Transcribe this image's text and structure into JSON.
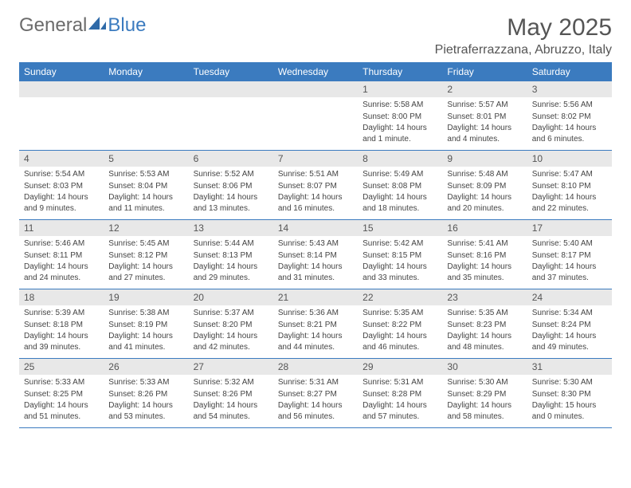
{
  "brand": {
    "part1": "General",
    "part2": "Blue"
  },
  "title": "May 2025",
  "location": "Pietraferrazzana, Abruzzo, Italy",
  "weekdays": [
    "Sunday",
    "Monday",
    "Tuesday",
    "Wednesday",
    "Thursday",
    "Friday",
    "Saturday"
  ],
  "colors": {
    "header_bar": "#3b7bbf",
    "daynum_bg": "#e8e8e8",
    "text": "#444444",
    "grid_border": "#3b7bbf"
  },
  "weeks": [
    [
      {
        "n": "",
        "sr": "",
        "ss": "",
        "dl": ""
      },
      {
        "n": "",
        "sr": "",
        "ss": "",
        "dl": ""
      },
      {
        "n": "",
        "sr": "",
        "ss": "",
        "dl": ""
      },
      {
        "n": "",
        "sr": "",
        "ss": "",
        "dl": ""
      },
      {
        "n": "1",
        "sr": "Sunrise: 5:58 AM",
        "ss": "Sunset: 8:00 PM",
        "dl": "Daylight: 14 hours and 1 minute."
      },
      {
        "n": "2",
        "sr": "Sunrise: 5:57 AM",
        "ss": "Sunset: 8:01 PM",
        "dl": "Daylight: 14 hours and 4 minutes."
      },
      {
        "n": "3",
        "sr": "Sunrise: 5:56 AM",
        "ss": "Sunset: 8:02 PM",
        "dl": "Daylight: 14 hours and 6 minutes."
      }
    ],
    [
      {
        "n": "4",
        "sr": "Sunrise: 5:54 AM",
        "ss": "Sunset: 8:03 PM",
        "dl": "Daylight: 14 hours and 9 minutes."
      },
      {
        "n": "5",
        "sr": "Sunrise: 5:53 AM",
        "ss": "Sunset: 8:04 PM",
        "dl": "Daylight: 14 hours and 11 minutes."
      },
      {
        "n": "6",
        "sr": "Sunrise: 5:52 AM",
        "ss": "Sunset: 8:06 PM",
        "dl": "Daylight: 14 hours and 13 minutes."
      },
      {
        "n": "7",
        "sr": "Sunrise: 5:51 AM",
        "ss": "Sunset: 8:07 PM",
        "dl": "Daylight: 14 hours and 16 minutes."
      },
      {
        "n": "8",
        "sr": "Sunrise: 5:49 AM",
        "ss": "Sunset: 8:08 PM",
        "dl": "Daylight: 14 hours and 18 minutes."
      },
      {
        "n": "9",
        "sr": "Sunrise: 5:48 AM",
        "ss": "Sunset: 8:09 PM",
        "dl": "Daylight: 14 hours and 20 minutes."
      },
      {
        "n": "10",
        "sr": "Sunrise: 5:47 AM",
        "ss": "Sunset: 8:10 PM",
        "dl": "Daylight: 14 hours and 22 minutes."
      }
    ],
    [
      {
        "n": "11",
        "sr": "Sunrise: 5:46 AM",
        "ss": "Sunset: 8:11 PM",
        "dl": "Daylight: 14 hours and 24 minutes."
      },
      {
        "n": "12",
        "sr": "Sunrise: 5:45 AM",
        "ss": "Sunset: 8:12 PM",
        "dl": "Daylight: 14 hours and 27 minutes."
      },
      {
        "n": "13",
        "sr": "Sunrise: 5:44 AM",
        "ss": "Sunset: 8:13 PM",
        "dl": "Daylight: 14 hours and 29 minutes."
      },
      {
        "n": "14",
        "sr": "Sunrise: 5:43 AM",
        "ss": "Sunset: 8:14 PM",
        "dl": "Daylight: 14 hours and 31 minutes."
      },
      {
        "n": "15",
        "sr": "Sunrise: 5:42 AM",
        "ss": "Sunset: 8:15 PM",
        "dl": "Daylight: 14 hours and 33 minutes."
      },
      {
        "n": "16",
        "sr": "Sunrise: 5:41 AM",
        "ss": "Sunset: 8:16 PM",
        "dl": "Daylight: 14 hours and 35 minutes."
      },
      {
        "n": "17",
        "sr": "Sunrise: 5:40 AM",
        "ss": "Sunset: 8:17 PM",
        "dl": "Daylight: 14 hours and 37 minutes."
      }
    ],
    [
      {
        "n": "18",
        "sr": "Sunrise: 5:39 AM",
        "ss": "Sunset: 8:18 PM",
        "dl": "Daylight: 14 hours and 39 minutes."
      },
      {
        "n": "19",
        "sr": "Sunrise: 5:38 AM",
        "ss": "Sunset: 8:19 PM",
        "dl": "Daylight: 14 hours and 41 minutes."
      },
      {
        "n": "20",
        "sr": "Sunrise: 5:37 AM",
        "ss": "Sunset: 8:20 PM",
        "dl": "Daylight: 14 hours and 42 minutes."
      },
      {
        "n": "21",
        "sr": "Sunrise: 5:36 AM",
        "ss": "Sunset: 8:21 PM",
        "dl": "Daylight: 14 hours and 44 minutes."
      },
      {
        "n": "22",
        "sr": "Sunrise: 5:35 AM",
        "ss": "Sunset: 8:22 PM",
        "dl": "Daylight: 14 hours and 46 minutes."
      },
      {
        "n": "23",
        "sr": "Sunrise: 5:35 AM",
        "ss": "Sunset: 8:23 PM",
        "dl": "Daylight: 14 hours and 48 minutes."
      },
      {
        "n": "24",
        "sr": "Sunrise: 5:34 AM",
        "ss": "Sunset: 8:24 PM",
        "dl": "Daylight: 14 hours and 49 minutes."
      }
    ],
    [
      {
        "n": "25",
        "sr": "Sunrise: 5:33 AM",
        "ss": "Sunset: 8:25 PM",
        "dl": "Daylight: 14 hours and 51 minutes."
      },
      {
        "n": "26",
        "sr": "Sunrise: 5:33 AM",
        "ss": "Sunset: 8:26 PM",
        "dl": "Daylight: 14 hours and 53 minutes."
      },
      {
        "n": "27",
        "sr": "Sunrise: 5:32 AM",
        "ss": "Sunset: 8:26 PM",
        "dl": "Daylight: 14 hours and 54 minutes."
      },
      {
        "n": "28",
        "sr": "Sunrise: 5:31 AM",
        "ss": "Sunset: 8:27 PM",
        "dl": "Daylight: 14 hours and 56 minutes."
      },
      {
        "n": "29",
        "sr": "Sunrise: 5:31 AM",
        "ss": "Sunset: 8:28 PM",
        "dl": "Daylight: 14 hours and 57 minutes."
      },
      {
        "n": "30",
        "sr": "Sunrise: 5:30 AM",
        "ss": "Sunset: 8:29 PM",
        "dl": "Daylight: 14 hours and 58 minutes."
      },
      {
        "n": "31",
        "sr": "Sunrise: 5:30 AM",
        "ss": "Sunset: 8:30 PM",
        "dl": "Daylight: 15 hours and 0 minutes."
      }
    ]
  ]
}
